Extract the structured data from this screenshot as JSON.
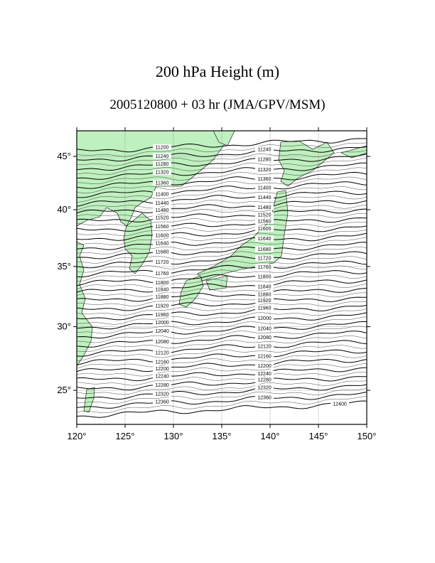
{
  "header": {
    "title": "200 hPa Height (m)",
    "subtitle": "2005120800 + 03 hr (JMA/GPV/MSM)"
  },
  "map": {
    "lon_ticks": [
      {
        "value": 120,
        "label": "120°"
      },
      {
        "value": 125,
        "label": "125°"
      },
      {
        "value": 130,
        "label": "130°"
      },
      {
        "value": 135,
        "label": "135°"
      },
      {
        "value": 140,
        "label": "140°"
      },
      {
        "value": 145,
        "label": "145°"
      },
      {
        "value": 150,
        "label": "150°"
      }
    ],
    "lat_ticks": [
      {
        "value": 25,
        "label": "25°"
      },
      {
        "value": 30,
        "label": "30°"
      },
      {
        "value": 35,
        "label": "35°"
      },
      {
        "value": 40,
        "label": "40°"
      },
      {
        "value": 45,
        "label": "45°"
      }
    ],
    "contours": [
      11200,
      11240,
      11280,
      11320,
      11360,
      11400,
      11440,
      11480,
      11520,
      11560,
      11600,
      11640,
      11680,
      11720,
      11760,
      11800,
      11840,
      11880,
      11920,
      11960,
      12000,
      12040,
      12080,
      12120,
      12160,
      12200,
      12240,
      12280,
      12320,
      12360,
      12400
    ]
  }
}
